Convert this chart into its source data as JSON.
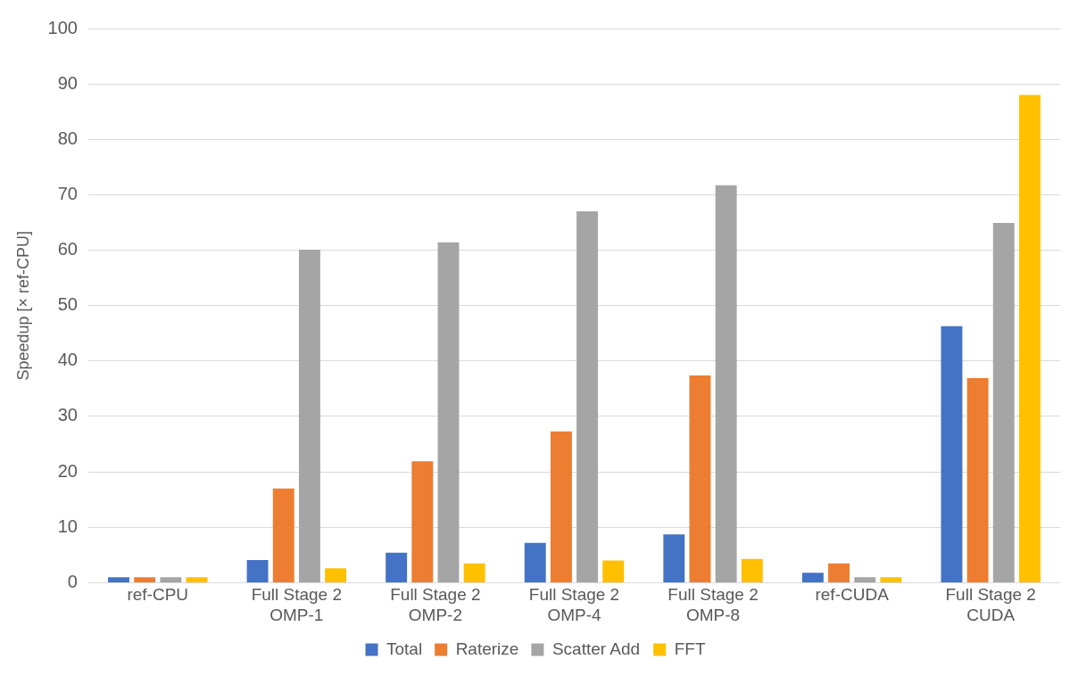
{
  "chart_data": {
    "type": "bar",
    "ylabel": "Speedup [× ref-CPU]",
    "categories": [
      "ref-CPU",
      "Full Stage 2 OMP-1",
      "Full Stage 2 OMP-2",
      "Full Stage 2 OMP-4",
      "Full Stage 2 OMP-8",
      "ref-CUDA",
      "Full Stage 2 CUDA"
    ],
    "series": [
      {
        "name": "Total",
        "color": "#4472c4",
        "values": [
          1,
          4.1,
          5.4,
          7.2,
          8.7,
          1.8,
          46.3
        ]
      },
      {
        "name": "Raterize",
        "color": "#ed7d31",
        "values": [
          1,
          17,
          21.9,
          27.3,
          37.4,
          3.5,
          36.9
        ]
      },
      {
        "name": "Scatter Add",
        "color": "#a5a5a5",
        "values": [
          1,
          60.1,
          61.4,
          67,
          71.7,
          1,
          64.9
        ]
      },
      {
        "name": "FFT",
        "color": "#ffc000",
        "values": [
          1,
          2.6,
          3.5,
          4,
          4.3,
          1,
          88
        ]
      }
    ],
    "ylim": [
      0,
      100
    ],
    "yticks": [
      0,
      10,
      20,
      30,
      40,
      50,
      60,
      70,
      80,
      90,
      100
    ],
    "grid": "y",
    "legend": "bottom"
  }
}
